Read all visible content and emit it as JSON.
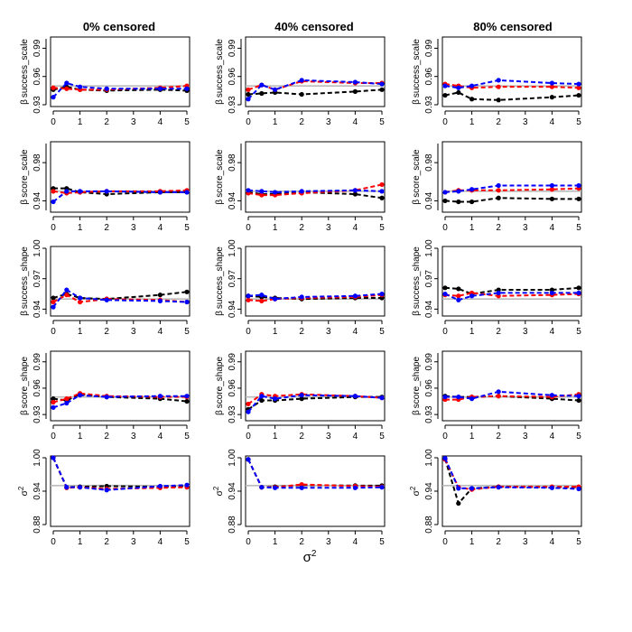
{
  "colors": {
    "black": "#000000",
    "red": "#ff0000",
    "blue": "#0000ff",
    "reference": "#bbbbbb"
  },
  "chart_data": {
    "type": "line",
    "layout": "5 rows x 3 columns panel grid",
    "column_titles": [
      "0% censored",
      "40% censored",
      "80% censored"
    ],
    "x_label_base": "σ",
    "x_label_sup": "2",
    "x": [
      0,
      0.5,
      1,
      2,
      4,
      5
    ],
    "xlim": [
      0,
      5
    ],
    "x_ticks": [
      0,
      1,
      2,
      3,
      4,
      5
    ],
    "series_names": [
      "black",
      "red",
      "blue"
    ],
    "rows": [
      {
        "ylabel_symbol": "β",
        "ylabel_text": "success_scale",
        "ylim": [
          0.93,
          1.0
        ],
        "y_ticks": [
          0.93,
          0.96,
          0.99
        ],
        "y_tick_labels": [
          "0.93",
          "0.96",
          "0.99"
        ],
        "reference": 0.95,
        "panels": [
          {
            "series": [
              {
                "name": "black",
                "values": [
                  0.946,
                  0.949,
                  0.946,
                  0.945,
                  0.946,
                  0.945
                ]
              },
              {
                "name": "red",
                "values": [
                  0.948,
                  0.947,
                  0.946,
                  0.946,
                  0.948,
                  0.95
                ]
              },
              {
                "name": "blue",
                "values": [
                  0.938,
                  0.953,
                  0.949,
                  0.947,
                  0.947,
                  0.947
                ]
              }
            ]
          },
          {
            "series": [
              {
                "name": "black",
                "values": [
                  0.941,
                  0.942,
                  0.943,
                  0.941,
                  0.944,
                  0.946
                ]
              },
              {
                "name": "red",
                "values": [
                  0.946,
                  0.951,
                  0.946,
                  0.955,
                  0.953,
                  0.953
                ]
              },
              {
                "name": "blue",
                "values": [
                  0.936,
                  0.951,
                  0.946,
                  0.956,
                  0.954,
                  0.952
                ]
              }
            ]
          },
          {
            "series": [
              {
                "name": "black",
                "values": [
                  0.94,
                  0.943,
                  0.936,
                  0.935,
                  0.938,
                  0.94
                ]
              },
              {
                "name": "red",
                "values": [
                  0.952,
                  0.95,
                  0.948,
                  0.949,
                  0.949,
                  0.948
                ]
              },
              {
                "name": "blue",
                "values": [
                  0.95,
                  0.948,
                  0.95,
                  0.956,
                  0.953,
                  0.952
                ]
              }
            ]
          }
        ]
      },
      {
        "ylabel_symbol": "β",
        "ylabel_text": "score_scale",
        "ylim": [
          0.93,
          1.0
        ],
        "y_ticks": [
          0.94,
          0.98
        ],
        "y_tick_labels": [
          "0.94",
          "0.98"
        ],
        "reference": 0.95,
        "panels": [
          {
            "series": [
              {
                "name": "black",
                "values": [
                  0.953,
                  0.953,
                  0.949,
                  0.947,
                  0.949,
                  0.949
                ]
              },
              {
                "name": "red",
                "values": [
                  0.95,
                  0.948,
                  0.949,
                  0.95,
                  0.95,
                  0.951
                ]
              },
              {
                "name": "blue",
                "values": [
                  0.939,
                  0.95,
                  0.95,
                  0.95,
                  0.949,
                  0.949
                ]
              }
            ]
          },
          {
            "series": [
              {
                "name": "black",
                "values": [
                  0.949,
                  0.947,
                  0.947,
                  0.949,
                  0.947,
                  0.943
                ]
              },
              {
                "name": "red",
                "values": [
                  0.948,
                  0.946,
                  0.946,
                  0.948,
                  0.951,
                  0.957
                ]
              },
              {
                "name": "blue",
                "values": [
                  0.951,
                  0.95,
                  0.949,
                  0.95,
                  0.951,
                  0.95
                ]
              }
            ]
          },
          {
            "series": [
              {
                "name": "black",
                "values": [
                  0.94,
                  0.939,
                  0.939,
                  0.943,
                  0.942,
                  0.942
                ]
              },
              {
                "name": "red",
                "values": [
                  0.949,
                  0.951,
                  0.951,
                  0.951,
                  0.952,
                  0.953
                ]
              },
              {
                "name": "blue",
                "values": [
                  0.949,
                  0.95,
                  0.952,
                  0.956,
                  0.956,
                  0.956
                ]
              }
            ]
          }
        ]
      },
      {
        "ylabel_symbol": "β",
        "ylabel_text": "success_shape",
        "ylim": [
          0.935,
          1.0
        ],
        "y_ticks": [
          0.94,
          0.97,
          1.0
        ],
        "y_tick_labels": [
          "0.94",
          "0.97",
          "1.00"
        ],
        "reference": 0.95,
        "panels": [
          {
            "series": [
              {
                "name": "black",
                "values": [
                  0.951,
                  0.955,
                  0.951,
                  0.95,
                  0.954,
                  0.957
                ]
              },
              {
                "name": "red",
                "values": [
                  0.947,
                  0.954,
                  0.947,
                  0.95,
                  0.949,
                  0.947
                ]
              },
              {
                "name": "blue",
                "values": [
                  0.942,
                  0.959,
                  0.951,
                  0.949,
                  0.948,
                  0.947
                ]
              }
            ]
          },
          {
            "series": [
              {
                "name": "black",
                "values": [
                  0.953,
                  0.952,
                  0.951,
                  0.95,
                  0.951,
                  0.951
                ]
              },
              {
                "name": "red",
                "values": [
                  0.949,
                  0.948,
                  0.95,
                  0.951,
                  0.952,
                  0.954
                ]
              },
              {
                "name": "blue",
                "values": [
                  0.953,
                  0.954,
                  0.95,
                  0.952,
                  0.953,
                  0.955
                ]
              }
            ]
          },
          {
            "series": [
              {
                "name": "black",
                "values": [
                  0.961,
                  0.96,
                  0.955,
                  0.959,
                  0.959,
                  0.961
                ]
              },
              {
                "name": "red",
                "values": [
                  0.954,
                  0.953,
                  0.956,
                  0.953,
                  0.954,
                  0.955
                ]
              },
              {
                "name": "blue",
                "values": [
                  0.955,
                  0.949,
                  0.953,
                  0.956,
                  0.956,
                  0.956
                ]
              }
            ]
          }
        ]
      },
      {
        "ylabel_symbol": "β",
        "ylabel_text": "score_shape",
        "ylim": [
          0.925,
          1.0
        ],
        "y_ticks": [
          0.93,
          0.96,
          0.99
        ],
        "y_tick_labels": [
          "0.93",
          "0.96",
          "0.99"
        ],
        "reference": 0.95,
        "panels": [
          {
            "series": [
              {
                "name": "black",
                "values": [
                  0.948,
                  0.946,
                  0.953,
                  0.95,
                  0.948,
                  0.945
                ]
              },
              {
                "name": "red",
                "values": [
                  0.944,
                  0.948,
                  0.954,
                  0.951,
                  0.95,
                  0.95
                ]
              },
              {
                "name": "blue",
                "values": [
                  0.938,
                  0.943,
                  0.952,
                  0.95,
                  0.951,
                  0.951
                ]
              }
            ]
          },
          {
            "series": [
              {
                "name": "black",
                "values": [
                  0.936,
                  0.946,
                  0.946,
                  0.948,
                  0.95,
                  0.95
                ]
              },
              {
                "name": "red",
                "values": [
                  0.942,
                  0.953,
                  0.951,
                  0.953,
                  0.951,
                  0.949
                ]
              },
              {
                "name": "blue",
                "values": [
                  0.933,
                  0.951,
                  0.948,
                  0.952,
                  0.951,
                  0.949
                ]
              }
            ]
          },
          {
            "series": [
              {
                "name": "black",
                "values": [
                  0.951,
                  0.95,
                  0.95,
                  0.951,
                  0.948,
                  0.946
                ]
              },
              {
                "name": "red",
                "values": [
                  0.947,
                  0.947,
                  0.95,
                  0.951,
                  0.95,
                  0.953
                ]
              },
              {
                "name": "blue",
                "values": [
                  0.95,
                  0.95,
                  0.948,
                  0.956,
                  0.952,
                  0.951
                ]
              }
            ]
          }
        ]
      },
      {
        "ylabel_symbol": "σ",
        "ylabel_text": "2",
        "ylim": [
          0.88,
          1.0
        ],
        "y_ticks": [
          0.88,
          0.94,
          1.0
        ],
        "y_tick_labels": [
          "0.88",
          "0.94",
          "1.00"
        ],
        "reference": 0.95,
        "panels": [
          {
            "series": [
              {
                "name": "black",
                "values": [
                  1.0,
                  0.947,
                  0.948,
                  0.949,
                  0.948,
                  0.949
                ]
              },
              {
                "name": "red",
                "values": [
                  1.0,
                  0.946,
                  0.947,
                  0.944,
                  0.946,
                  0.947
                ]
              },
              {
                "name": "blue",
                "values": [
                  1.0,
                  0.947,
                  0.947,
                  0.942,
                  0.949,
                  0.951
                ]
              }
            ]
          },
          {
            "series": [
              {
                "name": "black",
                "values": [
                  0.997,
                  0.947,
                  0.948,
                  0.951,
                  0.95,
                  0.95
                ]
              },
              {
                "name": "red",
                "values": [
                  0.997,
                  0.947,
                  0.947,
                  0.952,
                  0.949,
                  0.948
                ]
              },
              {
                "name": "blue",
                "values": [
                  0.997,
                  0.947,
                  0.946,
                  0.946,
                  0.946,
                  0.947
                ]
              }
            ]
          },
          {
            "series": [
              {
                "name": "black",
                "values": [
                  0.998,
                  0.918,
                  0.945,
                  0.948,
                  0.947,
                  0.947
                ]
              },
              {
                "name": "red",
                "values": [
                  0.997,
                  0.947,
                  0.943,
                  0.948,
                  0.948,
                  0.948
                ]
              },
              {
                "name": "blue",
                "values": [
                  0.999,
                  0.945,
                  0.945,
                  0.947,
                  0.946,
                  0.944
                ]
              }
            ]
          }
        ]
      }
    ]
  }
}
